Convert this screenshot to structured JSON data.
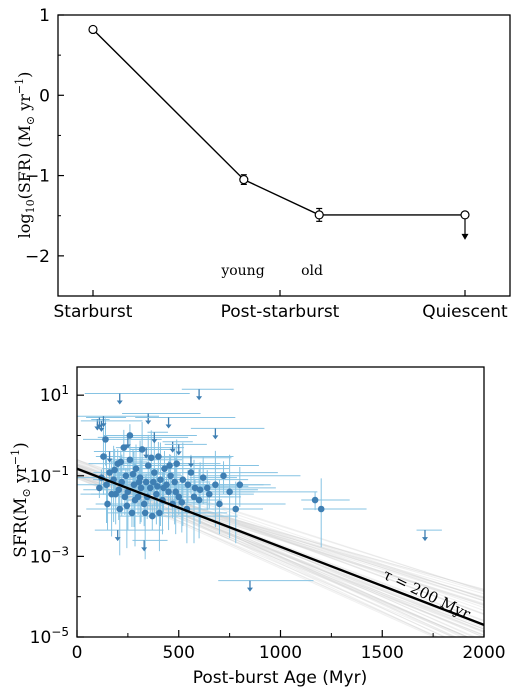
{
  "chart_data": [
    {
      "type": "line",
      "categories": [
        "Starburst",
        "Post-starburst",
        "Quiescent"
      ],
      "ylabel_main": "log",
      "ylabel_sub": "10",
      "ylabel_rest": "(SFR) (M",
      "ylabel_sun": "⊙",
      "ylabel_unit": " yr",
      "ylabel_exp": "−1",
      "ylabel_close": ")",
      "ylim": [
        -2.5,
        1.0
      ],
      "yticks": [
        "1",
        "0",
        "−1",
        "−2"
      ],
      "annotations": [
        "young",
        "old"
      ],
      "x_positions": [
        0.0,
        1.5,
        2.25,
        3.7
      ],
      "points": [
        {
          "x": 0.0,
          "y": 0.82,
          "err": 0.02,
          "upper_limit": false
        },
        {
          "x": 1.5,
          "y": -1.05,
          "err": 0.06,
          "upper_limit": false
        },
        {
          "x": 2.25,
          "y": -1.49,
          "err": 0.08,
          "upper_limit": false
        },
        {
          "x": 3.7,
          "y": -1.49,
          "err": 0.0,
          "upper_limit": true
        }
      ]
    },
    {
      "type": "scatter",
      "xlabel": "Post-burst Age (Myr)",
      "ylabel": "SFR(M",
      "ylabel_sun": "⊙",
      "ylabel_unit": " yr",
      "ylabel_exp": "−1",
      "ylabel_close": ")",
      "xlim": [
        0,
        2000
      ],
      "ylim": [
        1e-05,
        50
      ],
      "xticks": [
        "0",
        "500",
        "1000",
        "1500",
        "2000"
      ],
      "yticks": [
        {
          "base": "10",
          "exp": "1",
          "v": 10
        },
        {
          "base": "10",
          "exp": "−1",
          "v": 0.1
        },
        {
          "base": "10",
          "exp": "−3",
          "v": 0.001
        },
        {
          "base": "10",
          "exp": "−5",
          "v": 1e-05
        }
      ],
      "fit": {
        "x": [
          0,
          2000
        ],
        "y": [
          0.15,
          2e-05
        ]
      },
      "fit_label": "τ = 200 Myr",
      "colors": {
        "points": "#3f7fb3",
        "errors": "#86c3e3",
        "fit": "#000000",
        "band": "#d4d4d4"
      },
      "detections": [
        [
          110,
          0.05
        ],
        [
          130,
          0.3
        ],
        [
          150,
          0.02
        ],
        [
          160,
          0.12
        ],
        [
          180,
          0.08
        ],
        [
          190,
          0.035
        ],
        [
          200,
          0.2
        ],
        [
          210,
          0.015
        ],
        [
          220,
          0.07
        ],
        [
          230,
          0.5
        ],
        [
          240,
          0.1
        ],
        [
          250,
          0.04
        ],
        [
          260,
          0.25
        ],
        [
          270,
          0.012
        ],
        [
          280,
          0.06
        ],
        [
          290,
          0.15
        ],
        [
          300,
          0.03
        ],
        [
          310,
          0.09
        ],
        [
          320,
          0.45
        ],
        [
          330,
          0.02
        ],
        [
          340,
          0.07
        ],
        [
          350,
          0.18
        ],
        [
          360,
          0.05
        ],
        [
          370,
          0.01
        ],
        [
          380,
          0.12
        ],
        [
          390,
          0.035
        ],
        [
          400,
          0.3
        ],
        [
          410,
          0.08
        ],
        [
          420,
          0.025
        ],
        [
          430,
          0.15
        ],
        [
          440,
          0.06
        ],
        [
          450,
          0.04
        ],
        [
          460,
          0.1
        ],
        [
          470,
          0.02
        ],
        [
          480,
          0.07
        ],
        [
          490,
          0.2
        ],
        [
          500,
          0.03
        ],
        [
          520,
          0.08
        ],
        [
          540,
          0.015
        ],
        [
          560,
          0.12
        ],
        [
          580,
          0.05
        ],
        [
          600,
          0.025
        ],
        [
          620,
          0.09
        ],
        [
          650,
          0.035
        ],
        [
          680,
          0.06
        ],
        [
          700,
          0.02
        ],
        [
          720,
          0.1
        ],
        [
          750,
          0.04
        ],
        [
          780,
          0.015
        ],
        [
          800,
          0.06
        ],
        [
          1170,
          0.025
        ],
        [
          1200,
          0.015
        ],
        [
          140,
          0.8
        ],
        [
          260,
          1.0
        ],
        [
          170,
          0.035
        ],
        [
          205,
          0.045
        ],
        [
          235,
          0.03
        ],
        [
          285,
          0.025
        ],
        [
          315,
          0.05
        ],
        [
          345,
          0.03
        ],
        [
          375,
          0.07
        ],
        [
          405,
          0.012
        ],
        [
          425,
          0.05
        ],
        [
          455,
          0.18
        ],
        [
          485,
          0.04
        ],
        [
          515,
          0.022
        ],
        [
          545,
          0.06
        ],
        [
          575,
          0.03
        ],
        [
          605,
          0.045
        ],
        [
          640,
          0.05
        ],
        [
          120,
          0.09
        ],
        [
          145,
          0.06
        ],
        [
          185,
          0.14
        ],
        [
          215,
          0.22
        ],
        [
          245,
          0.018
        ],
        [
          275,
          0.11
        ],
        [
          305,
          0.07
        ],
        [
          335,
          0.012
        ],
        [
          365,
          0.28
        ],
        [
          395,
          0.055
        ]
      ],
      "upper_limits": [
        [
          100,
          2.5
        ],
        [
          110,
          2.8
        ],
        [
          120,
          2.3
        ],
        [
          130,
          3.0
        ],
        [
          210,
          11
        ],
        [
          330,
          0.0025
        ],
        [
          340,
          0.5
        ],
        [
          350,
          3.5
        ],
        [
          450,
          2.8
        ],
        [
          470,
          0.7
        ],
        [
          600,
          14
        ],
        [
          680,
          1.5
        ],
        [
          850,
          0.00025
        ],
        [
          1710,
          0.0045
        ],
        [
          160,
          0.4
        ],
        [
          200,
          0.0045
        ],
        [
          250,
          0.9
        ],
        [
          380,
          1.2
        ],
        [
          500,
          0.6
        ],
        [
          560,
          0.3
        ]
      ]
    }
  ]
}
